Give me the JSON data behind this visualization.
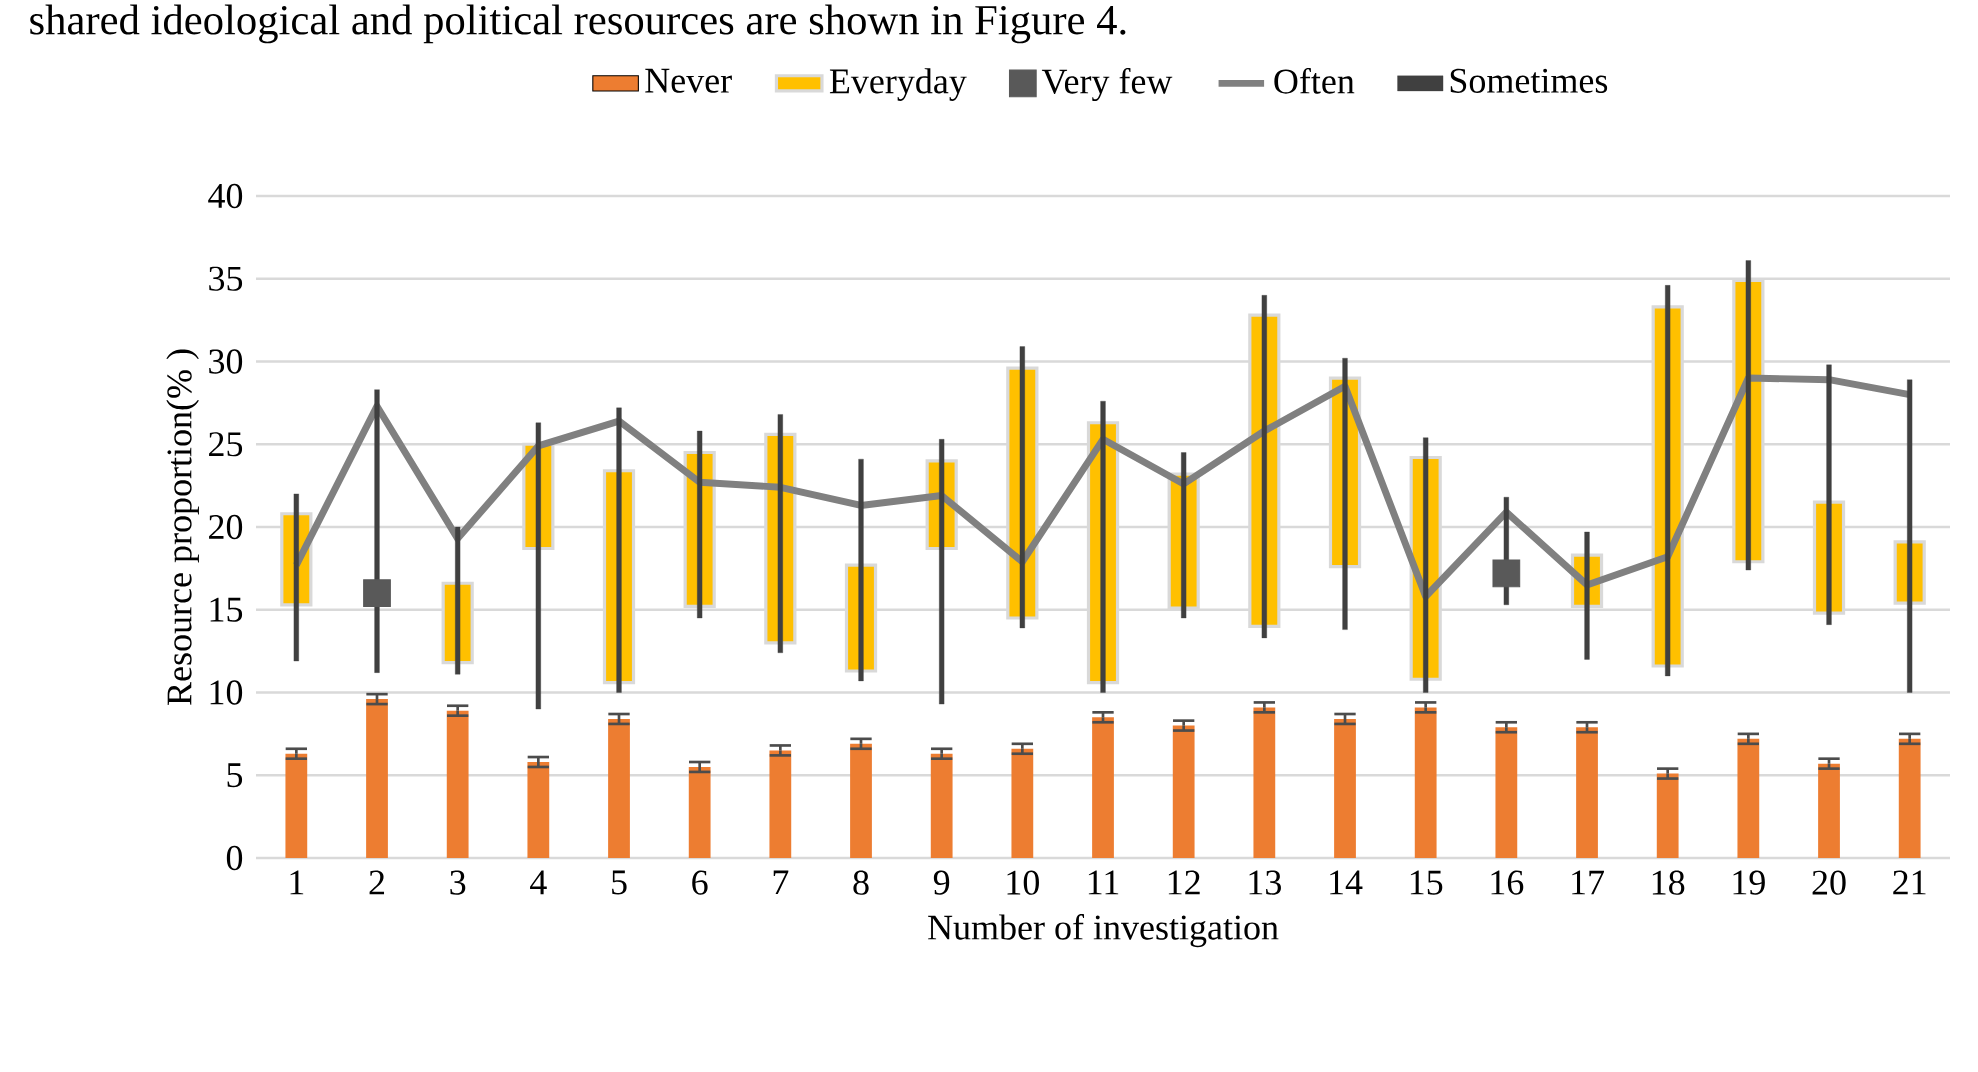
{
  "chart_data": {
    "type": "bar",
    "xlabel": "Number of investigation",
    "ylabel": "Resource proportion(% )",
    "annotations": [
      "shared ideological and political resources are shown in Figure 4."
    ],
    "categories": [
      "1",
      "2",
      "3",
      "4",
      "5",
      "6",
      "7",
      "8",
      "9",
      "10",
      "11",
      "12",
      "13",
      "14",
      "15",
      "16",
      "17",
      "18",
      "19",
      "20",
      "21"
    ],
    "ylim": [
      0,
      40
    ],
    "yticks": [
      0,
      5,
      10,
      15,
      20,
      25,
      30,
      35,
      40
    ],
    "grid": "y",
    "legend": "top",
    "series": [
      {
        "name": "Never",
        "color": "#ed7d31",
        "values": [
          6.3,
          9.6,
          8.9,
          5.8,
          8.4,
          5.5,
          6.5,
          6.9,
          6.3,
          6.6,
          8.5,
          8.0,
          9.1,
          8.4,
          9.1,
          7.9,
          7.9,
          5.1,
          7.2,
          5.7,
          7.2
        ],
        "errors": [
          0.3,
          0.3,
          0.3,
          0.3,
          0.3,
          0.3,
          0.3,
          0.3,
          0.3,
          0.3,
          0.3,
          0.3,
          0.3,
          0.3,
          0.3,
          0.3,
          0.3,
          0.3,
          0.3,
          0.3,
          0.3
        ]
      },
      {
        "name": "Everyday",
        "color": "#ffc000",
        "base": [
          15.3,
          null,
          11.8,
          18.7,
          10.6,
          15.2,
          13.0,
          11.3,
          18.7,
          14.5,
          10.6,
          15.1,
          14.0,
          17.6,
          10.8,
          null,
          15.2,
          11.6,
          17.9,
          14.8,
          15.4
        ],
        "values": [
          5.5,
          null,
          4.8,
          6.3,
          12.8,
          9.3,
          12.6,
          6.4,
          5.3,
          15.1,
          15.7,
          8.1,
          18.8,
          11.4,
          13.4,
          null,
          3.1,
          21.7,
          17.0,
          6.7,
          3.7
        ]
      },
      {
        "name": "Very few",
        "type": "scatter",
        "color": "#595959",
        "marker": "square",
        "values": [
          null,
          16.0,
          null,
          null,
          null,
          null,
          null,
          null,
          null,
          null,
          null,
          null,
          null,
          null,
          null,
          17.2,
          null,
          null,
          null,
          null,
          null
        ]
      },
      {
        "name": "Often",
        "type": "line",
        "color": "#808080",
        "values": [
          17.7,
          27.3,
          19.3,
          24.9,
          26.4,
          22.7,
          22.4,
          21.3,
          21.9,
          17.9,
          25.3,
          22.6,
          25.8,
          28.5,
          15.8,
          20.9,
          16.5,
          18.2,
          29.0,
          28.9,
          28.0
        ]
      },
      {
        "name": "Sometimes",
        "color": "#404040",
        "base": [
          11.9,
          11.2,
          11.1,
          9.0,
          10.0,
          14.5,
          12.4,
          10.7,
          9.3,
          13.9,
          10.0,
          14.5,
          13.3,
          13.8,
          10.0,
          15.3,
          12.0,
          11.0,
          17.4,
          14.1,
          10.0
        ],
        "values": [
          10.1,
          17.1,
          8.9,
          17.3,
          17.2,
          11.3,
          14.4,
          13.4,
          16.0,
          17.0,
          17.6,
          10.0,
          20.7,
          16.4,
          15.4,
          6.5,
          7.7,
          23.6,
          18.7,
          15.7,
          18.9
        ]
      }
    ]
  }
}
